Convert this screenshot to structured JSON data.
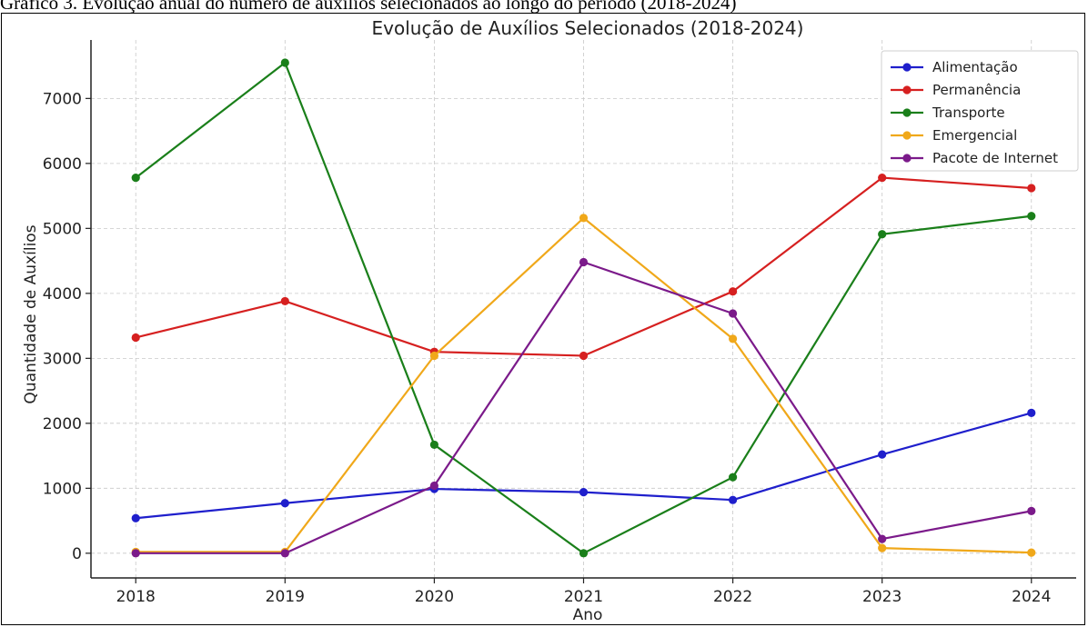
{
  "caption": "Gráfico 3. Evolução anual do número de auxílios selecionados ao longo do período (2018-2024)",
  "chart_data": {
    "type": "line",
    "title": "Evolução de Auxílios Selecionados (2018-2024)",
    "xlabel": "Ano",
    "ylabel": "Quantidade de Auxílios",
    "x": [
      2018,
      2019,
      2020,
      2021,
      2022,
      2023,
      2024
    ],
    "yticks": [
      0,
      1000,
      2000,
      3000,
      4000,
      5000,
      6000,
      7000
    ],
    "ylim": [
      -380,
      7900
    ],
    "grid": true,
    "legend_position": "top-right",
    "series": [
      {
        "name": "Alimentação",
        "color": "#1f1fcc",
        "values": [
          540,
          770,
          990,
          940,
          820,
          1520,
          2160
        ]
      },
      {
        "name": "Permanência",
        "color": "#d62020",
        "values": [
          3320,
          3880,
          3100,
          3040,
          4030,
          5780,
          5620
        ]
      },
      {
        "name": "Transporte",
        "color": "#1a7f1a",
        "values": [
          5780,
          7550,
          1670,
          0,
          1170,
          4910,
          5190
        ]
      },
      {
        "name": "Emergencial",
        "color": "#f0a81a",
        "values": [
          20,
          20,
          3040,
          5160,
          3300,
          80,
          10
        ]
      },
      {
        "name": "Pacote de Internet",
        "color": "#7b1a8a",
        "values": [
          0,
          0,
          1040,
          4480,
          3690,
          220,
          650
        ]
      }
    ]
  }
}
